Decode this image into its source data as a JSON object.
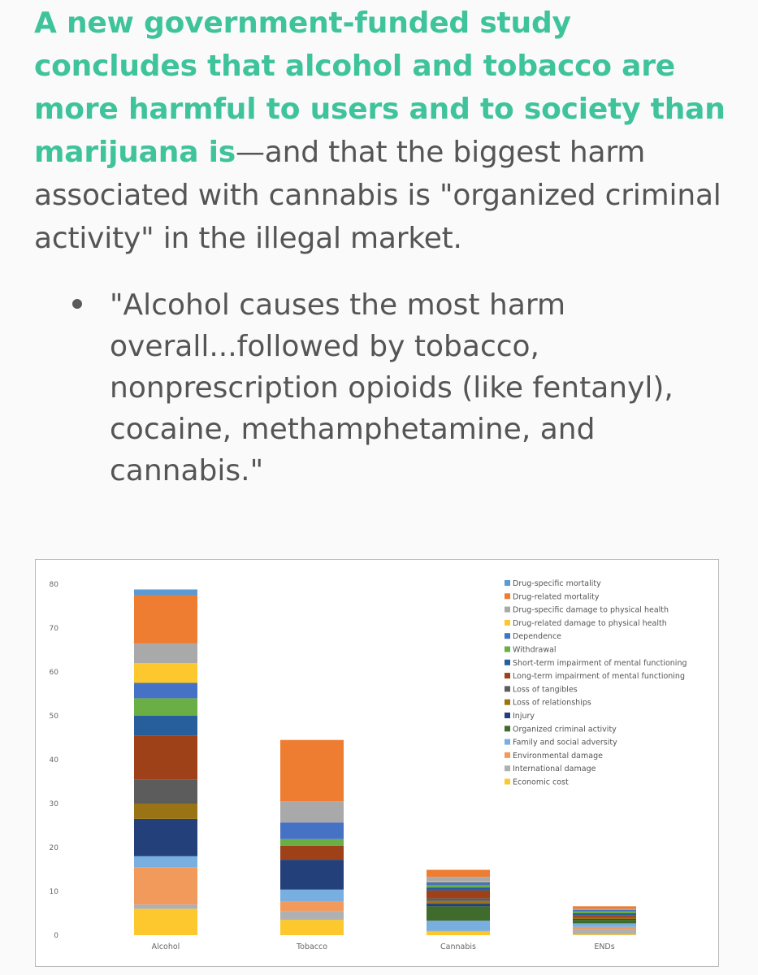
{
  "article": {
    "headline_highlight": "A new government-funded study concludes that alcohol and tobacco are more harmful to users and to society than marijuana is",
    "headline_rest": "—and that the biggest harm associated with cannabis is \"organized criminal activity\" in the illegal market.",
    "bullet": "\"Alcohol causes the most harm overall...followed by tobacco, nonprescription opioids (like fentanyl), cocaine, methamphetamine, and cannabis.\""
  },
  "colors": {
    "highlight": "#3ec39b",
    "body_text": "#555555"
  },
  "chart_data": {
    "type": "bar",
    "stacked": true,
    "title": "",
    "xlabel": "",
    "ylabel": "",
    "ylim": [
      0,
      80
    ],
    "yticks": [
      0,
      10,
      20,
      30,
      40,
      50,
      60,
      70,
      80
    ],
    "grid": false,
    "legend_position": "top-right",
    "categories": [
      "Alcohol",
      "Tobacco",
      "Cannabis",
      "ENDs"
    ],
    "series": [
      {
        "name": "Economic cost",
        "color": "#fcc82d",
        "values": [
          6,
          3.5,
          0.8,
          0.2
        ]
      },
      {
        "name": "International damage",
        "color": "#b0b0b0",
        "values": [
          1,
          2,
          0.2,
          1.2
        ]
      },
      {
        "name": "Environmental damage",
        "color": "#f29a5c",
        "values": [
          8.5,
          2.2,
          0,
          0.5
        ]
      },
      {
        "name": "Family and social adversity",
        "color": "#78afe0",
        "values": [
          2.5,
          2.7,
          2.3,
          0.8
        ]
      },
      {
        "name": "Organized criminal activity",
        "color": "#3f6b2d",
        "values": [
          0,
          0,
          3.3,
          0.8
        ]
      },
      {
        "name": "Injury",
        "color": "#24407a",
        "values": [
          8.5,
          6.8,
          0.6,
          0.2
        ]
      },
      {
        "name": "Loss of relationships",
        "color": "#9a7314",
        "values": [
          3.5,
          0,
          0.6,
          0.2
        ]
      },
      {
        "name": "Loss of tangibles",
        "color": "#5c5c5c",
        "values": [
          5.5,
          0,
          0.6,
          0.2
        ]
      },
      {
        "name": "Long-term impairment of mental functioning",
        "color": "#9e4018",
        "values": [
          10,
          3.2,
          1.8,
          0.4
        ]
      },
      {
        "name": "Short-term impairment of mental functioning",
        "color": "#265f9c",
        "values": [
          4.5,
          0,
          0.7,
          0.5
        ]
      },
      {
        "name": "Withdrawal",
        "color": "#6aae46",
        "values": [
          4,
          1.5,
          0.5,
          0.4
        ]
      },
      {
        "name": "Dependence",
        "color": "#4572c4",
        "values": [
          3.5,
          3.8,
          0.7,
          0.4
        ]
      },
      {
        "name": "Drug-related damage to physical health",
        "color": "#fcc82d",
        "values": [
          4.5,
          0,
          0.2,
          0
        ]
      },
      {
        "name": "Drug-specific damage to physical health",
        "color": "#a9a9a9",
        "values": [
          4.5,
          4.8,
          1,
          0.2
        ]
      },
      {
        "name": "Drug-related mortality",
        "color": "#ee7d31",
        "values": [
          11,
          14,
          1.6,
          0.6
        ]
      },
      {
        "name": "Drug-specific mortality",
        "color": "#5b9bd5",
        "values": [
          1.3,
          0,
          0,
          0
        ]
      }
    ]
  }
}
